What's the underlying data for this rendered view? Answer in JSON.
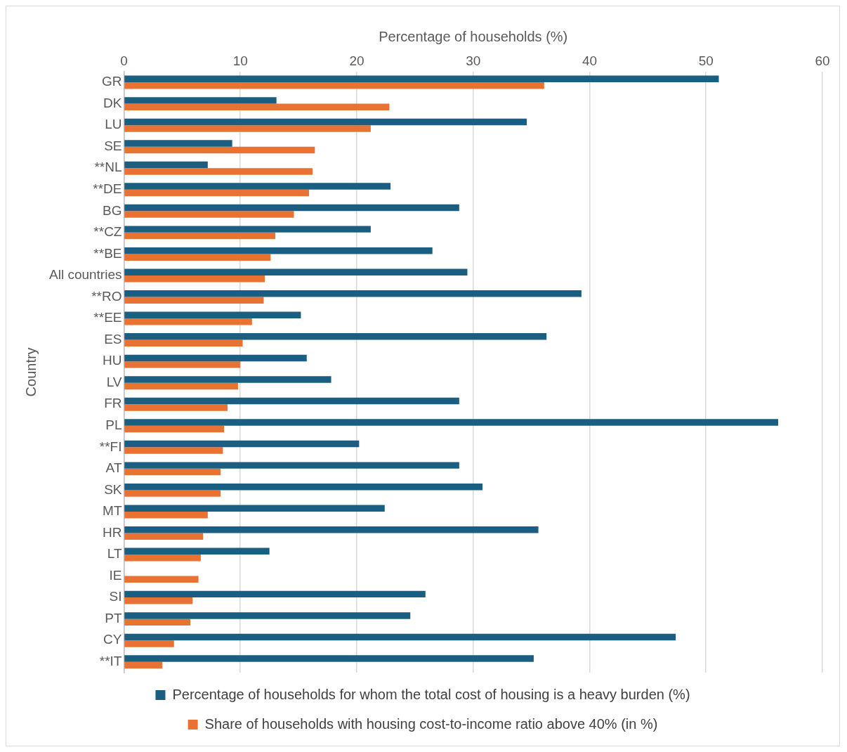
{
  "chart_data": {
    "type": "bar",
    "orientation": "horizontal",
    "xlabel": "Percentage of households (%)",
    "ylabel": "Country",
    "categories": [
      "GR",
      "DK",
      "LU",
      "SE",
      "**NL",
      "**DE",
      "BG",
      "**CZ",
      "**BE",
      "All countries",
      "**RO",
      "**EE",
      "ES",
      "HU",
      "LV",
      "FR",
      "PL",
      "**FI",
      "AT",
      "SK",
      "MT",
      "HR",
      "LT",
      "IE",
      "SI",
      "PT",
      "CY",
      "**IT"
    ],
    "series": [
      {
        "name": "Percentage of households for whom the total cost of housing is a heavy burden (%)",
        "color": "#1a5f82",
        "values": [
          51.1,
          13.1,
          34.6,
          9.3,
          7.2,
          22.9,
          28.8,
          21.2,
          26.5,
          29.5,
          39.3,
          15.2,
          36.3,
          15.7,
          17.8,
          28.8,
          56.2,
          20.2,
          28.8,
          30.8,
          22.4,
          35.6,
          12.5,
          null,
          25.9,
          24.6,
          47.4,
          35.2
        ]
      },
      {
        "name": "Share of households with housing cost-to-income ratio above 40% (in %)",
        "color": "#e97132",
        "values": [
          36.1,
          22.8,
          21.2,
          16.4,
          16.2,
          15.9,
          14.6,
          13.0,
          12.6,
          12.1,
          12.0,
          11.0,
          10.2,
          10.0,
          9.8,
          8.9,
          8.6,
          8.5,
          8.3,
          8.3,
          7.2,
          6.8,
          6.6,
          6.4,
          5.9,
          5.7,
          4.3,
          3.3
        ]
      }
    ],
    "xlim": [
      0,
      60
    ],
    "xticks": [
      0,
      10,
      20,
      30,
      40,
      50,
      60
    ],
    "grid": "x",
    "legend": "bottom"
  }
}
